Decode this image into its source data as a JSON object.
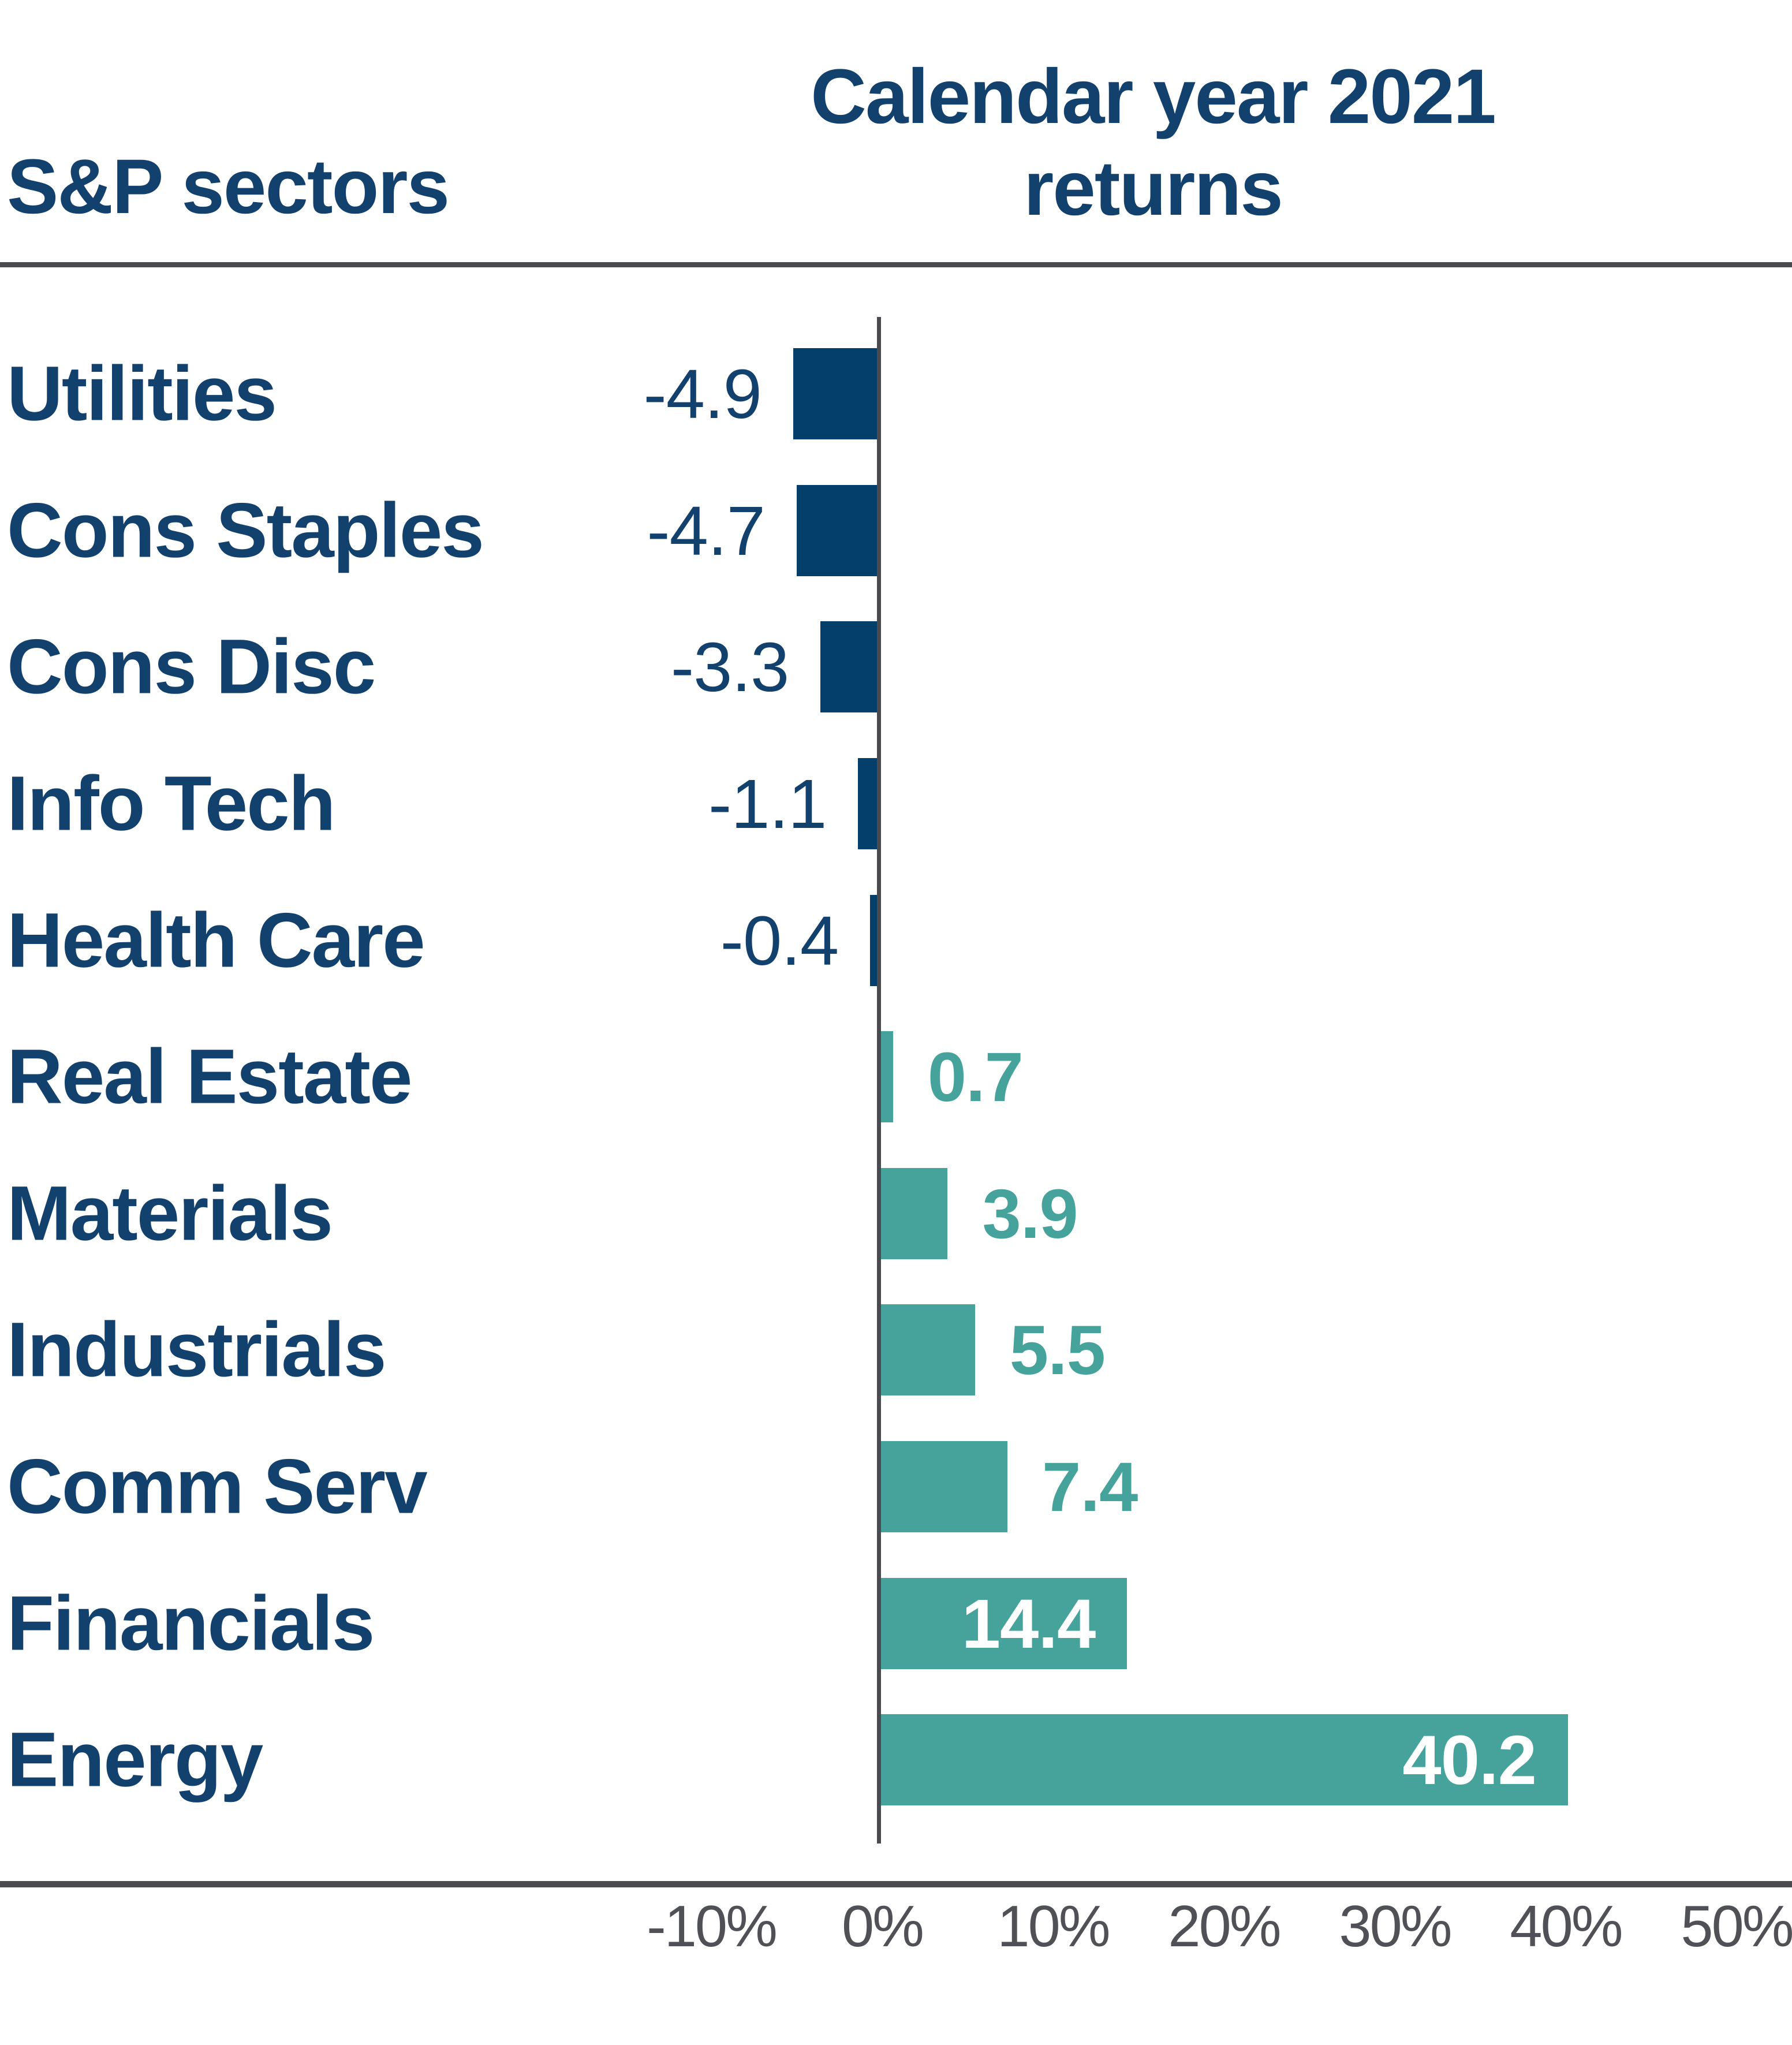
{
  "header": {
    "left_title": "S&P sectors",
    "title_line1": "Calendar year 2021",
    "title_line2": "returns"
  },
  "colors": {
    "negative_bar": "#043e6a",
    "positive_bar": "#45a39c",
    "label_text": "#12416e",
    "value_negative_text": "#12416e",
    "value_positive_text": "#45a39c",
    "value_inside_text": "#ffffff",
    "axis_tick_text": "#4f5157",
    "rule_line": "#4a4b51"
  },
  "chart_data": {
    "type": "bar",
    "orientation": "horizontal",
    "title": "Calendar year 2021 returns",
    "xlabel": "",
    "ylabel": "S&P sectors",
    "categories": [
      "Utilities",
      "Cons Staples",
      "Cons Disc",
      "Info Tech",
      "Health Care",
      "Real Estate",
      "Materials",
      "Industrials",
      "Comm Serv",
      "Financials",
      "Energy"
    ],
    "values": [
      -4.9,
      -4.7,
      -3.3,
      -1.1,
      -0.4,
      0.7,
      3.9,
      5.5,
      7.4,
      14.4,
      40.2
    ],
    "value_labels": [
      "-4.9",
      "-4.7",
      "-3.3",
      "-1.1",
      "-0.4",
      "0.7",
      "3.9",
      "5.5",
      "7.4",
      "14.4",
      "40.2"
    ],
    "x_ticks": [
      "-10%",
      "0%",
      "10%",
      "20%",
      "30%",
      "40%",
      "50%"
    ],
    "x_tick_values": [
      -10,
      0,
      10,
      20,
      30,
      40,
      50
    ],
    "xlim": [
      -10,
      50
    ],
    "grid": false,
    "legend": null,
    "units": "percent"
  }
}
